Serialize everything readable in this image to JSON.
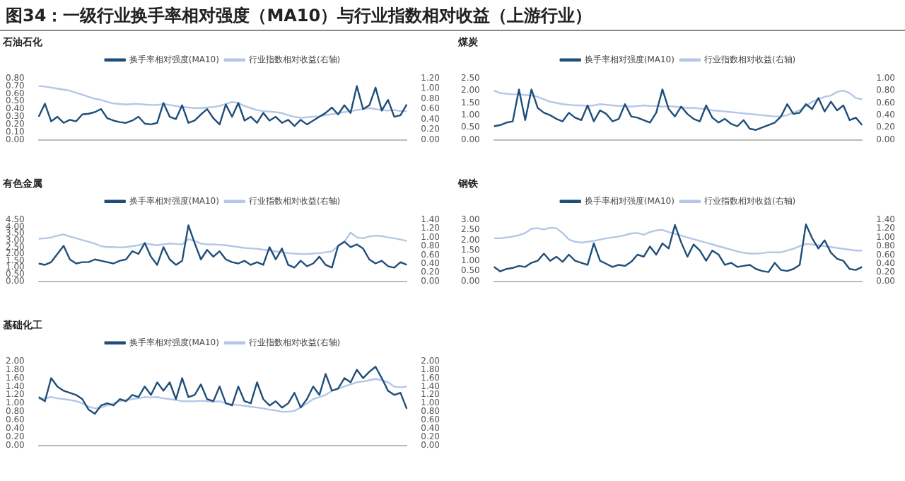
{
  "chart_data": [
    {
      "type": "line",
      "title": "石油石化",
      "categories": [
        null,
        null,
        null,
        null,
        null,
        null,
        null,
        null,
        null,
        null,
        null,
        null,
        null,
        null,
        null,
        null,
        null,
        null,
        null,
        null,
        null,
        null,
        null,
        null,
        null,
        null,
        null,
        null,
        null,
        null,
        null,
        null,
        null,
        null,
        null,
        null,
        null,
        null,
        null,
        null,
        null,
        null,
        null,
        null,
        null,
        null,
        null,
        null,
        null,
        null,
        null,
        null,
        null,
        null,
        null,
        null,
        null,
        null,
        null,
        null
      ],
      "series": [
        {
          "name": "换手率相对强度(MA10)",
          "color": "#1f4e79",
          "values": [
            0.3,
            0.47,
            0.24,
            0.3,
            0.22,
            0.26,
            0.24,
            0.33,
            0.34,
            0.36,
            0.4,
            0.28,
            0.25,
            0.23,
            0.22,
            0.25,
            0.3,
            0.21,
            0.2,
            0.22,
            0.48,
            0.3,
            0.27,
            0.45,
            0.22,
            0.25,
            0.33,
            0.4,
            0.28,
            0.2,
            0.46,
            0.3,
            0.48,
            0.25,
            0.3,
            0.22,
            0.35,
            0.25,
            0.3,
            0.22,
            0.26,
            0.18,
            0.26,
            0.2,
            0.25,
            0.3,
            0.35,
            0.42,
            0.33,
            0.45,
            0.35,
            0.7,
            0.4,
            0.45,
            0.68,
            0.38,
            0.52,
            0.3,
            0.32,
            0.46
          ]
        },
        {
          "name": "行业指数相对收益(右轴)",
          "color": "#b4c7e7",
          "axis": "y2",
          "values": [
            1.05,
            1.04,
            1.02,
            1.0,
            0.98,
            0.96,
            0.92,
            0.88,
            0.84,
            0.8,
            0.78,
            0.74,
            0.71,
            0.7,
            0.69,
            0.7,
            0.7,
            0.69,
            0.68,
            0.68,
            0.7,
            0.68,
            0.66,
            0.64,
            0.63,
            0.62,
            0.62,
            0.63,
            0.64,
            0.66,
            0.7,
            0.74,
            0.72,
            0.66,
            0.62,
            0.58,
            0.56,
            0.55,
            0.54,
            0.52,
            0.48,
            0.45,
            0.43,
            0.44,
            0.45,
            0.46,
            0.48,
            0.5,
            0.52,
            0.54,
            0.56,
            0.58,
            0.6,
            0.62,
            0.6,
            0.58,
            0.57,
            0.58,
            0.56,
            0.56
          ]
        }
      ],
      "ylim": [
        0,
        0.8
      ],
      "yticks": [
        {
          "value": 0,
          "label": "0.00"
        },
        {
          "value": 0.1,
          "label": "0.10"
        },
        {
          "value": 0.2,
          "label": "0.20"
        },
        {
          "value": 0.3,
          "label": "0.30"
        },
        {
          "value": 0.4,
          "label": "0.40"
        },
        {
          "value": 0.5,
          "label": "0.50"
        },
        {
          "value": 0.6,
          "label": "0.60"
        },
        {
          "value": 0.7,
          "label": "0.70"
        },
        {
          "value": 0.8,
          "label": "0.80"
        }
      ],
      "y2lim": [
        0,
        1.2
      ],
      "y2ticks": [
        {
          "value": 0,
          "label": "0.00"
        },
        {
          "value": 0.2,
          "label": "0.20"
        },
        {
          "value": 0.4,
          "label": "0.40"
        },
        {
          "value": 0.6,
          "label": "0.60"
        },
        {
          "value": 0.8,
          "label": "0.80"
        },
        {
          "value": 1.0,
          "label": "1.00"
        },
        {
          "value": 1.2,
          "label": "1.20"
        }
      ],
      "annotations": [
        "图34：一级行业换手率相对强度（MA10）与行业指数相对收益（上游行业）"
      ],
      "legend": "top",
      "grid": false,
      "marker": "none"
    },
    {
      "type": "line",
      "title": "煤炭",
      "categories": [
        null,
        null,
        null,
        null,
        null,
        null,
        null,
        null,
        null,
        null,
        null,
        null,
        null,
        null,
        null,
        null,
        null,
        null,
        null,
        null,
        null,
        null,
        null,
        null,
        null,
        null,
        null,
        null,
        null,
        null,
        null,
        null,
        null,
        null,
        null,
        null,
        null,
        null,
        null,
        null,
        null,
        null,
        null,
        null,
        null,
        null,
        null,
        null,
        null,
        null,
        null,
        null,
        null,
        null,
        null,
        null,
        null,
        null,
        null,
        null
      ],
      "series": [
        {
          "name": "换手率相对强度(MA10)",
          "color": "#1f4e79",
          "values": [
            0.55,
            0.6,
            0.7,
            0.75,
            2.05,
            0.8,
            2.05,
            1.3,
            1.1,
            1.0,
            0.85,
            0.75,
            1.1,
            0.9,
            0.8,
            1.4,
            0.75,
            1.2,
            1.05,
            0.75,
            0.85,
            1.45,
            0.95,
            0.9,
            0.8,
            0.7,
            1.1,
            2.05,
            1.25,
            0.95,
            1.35,
            1.05,
            0.85,
            0.75,
            1.4,
            0.9,
            0.7,
            0.85,
            0.65,
            0.55,
            0.8,
            0.45,
            0.4,
            0.5,
            0.6,
            0.7,
            0.95,
            1.45,
            1.05,
            1.1,
            1.45,
            1.25,
            1.7,
            1.15,
            1.55,
            1.2,
            1.4,
            0.8,
            0.9,
            0.6
          ]
        },
        {
          "name": "行业指数相对收益(右轴)",
          "color": "#b4c7e7",
          "axis": "y2",
          "values": [
            0.8,
            0.76,
            0.75,
            0.74,
            0.74,
            0.73,
            0.72,
            0.7,
            0.66,
            0.62,
            0.6,
            0.58,
            0.57,
            0.56,
            0.56,
            0.55,
            0.56,
            0.58,
            0.57,
            0.56,
            0.55,
            0.55,
            0.54,
            0.55,
            0.56,
            0.55,
            0.55,
            0.54,
            0.55,
            0.54,
            0.53,
            0.52,
            0.52,
            0.51,
            0.5,
            0.48,
            0.47,
            0.46,
            0.45,
            0.44,
            0.43,
            0.42,
            0.41,
            0.4,
            0.39,
            0.38,
            0.38,
            0.4,
            0.44,
            0.48,
            0.55,
            0.62,
            0.66,
            0.7,
            0.72,
            0.78,
            0.8,
            0.76,
            0.68,
            0.66
          ]
        }
      ],
      "ylim": [
        0,
        2.5
      ],
      "yticks": [
        {
          "value": 0,
          "label": "0.00"
        },
        {
          "value": 0.5,
          "label": "0.50"
        },
        {
          "value": 1.0,
          "label": "1.00"
        },
        {
          "value": 1.5,
          "label": "1.50"
        },
        {
          "value": 2.0,
          "label": "2.00"
        },
        {
          "value": 2.5,
          "label": "2.50"
        }
      ],
      "y2lim": [
        0,
        1.0
      ],
      "y2ticks": [
        {
          "value": 0,
          "label": "0.00"
        },
        {
          "value": 0.2,
          "label": "0.20"
        },
        {
          "value": 0.4,
          "label": "0.40"
        },
        {
          "value": 0.6,
          "label": "0.60"
        },
        {
          "value": 0.8,
          "label": "0.80"
        },
        {
          "value": 1.0,
          "label": "1.00"
        }
      ],
      "legend": "top",
      "grid": false,
      "marker": "none"
    },
    {
      "type": "line",
      "title": "有色金属",
      "categories": [
        null,
        null,
        null,
        null,
        null,
        null,
        null,
        null,
        null,
        null,
        null,
        null,
        null,
        null,
        null,
        null,
        null,
        null,
        null,
        null,
        null,
        null,
        null,
        null,
        null,
        null,
        null,
        null,
        null,
        null,
        null,
        null,
        null,
        null,
        null,
        null,
        null,
        null,
        null,
        null,
        null,
        null,
        null,
        null,
        null,
        null,
        null,
        null,
        null,
        null,
        null,
        null,
        null,
        null,
        null,
        null,
        null,
        null,
        null,
        null
      ],
      "series": [
        {
          "name": "换手率相对强度(MA10)",
          "color": "#1f4e79",
          "values": [
            1.3,
            1.2,
            1.4,
            2.0,
            2.6,
            1.6,
            1.3,
            1.4,
            1.4,
            1.6,
            1.5,
            1.4,
            1.3,
            1.5,
            1.6,
            2.2,
            2.0,
            2.8,
            1.8,
            1.2,
            2.5,
            1.6,
            1.2,
            1.5,
            4.1,
            2.8,
            1.6,
            2.3,
            1.8,
            2.2,
            1.6,
            1.4,
            1.3,
            1.5,
            1.2,
            1.4,
            1.2,
            2.5,
            1.6,
            2.4,
            1.2,
            1.0,
            1.5,
            1.1,
            1.3,
            1.8,
            1.2,
            1.0,
            2.6,
            2.9,
            2.5,
            2.7,
            2.4,
            1.6,
            1.3,
            1.5,
            1.1,
            1.0,
            1.4,
            1.2
          ]
        },
        {
          "name": "行业指数相对收益(右轴)",
          "color": "#b4c7e7",
          "axis": "y2",
          "values": [
            0.97,
            0.98,
            1.0,
            1.04,
            1.07,
            1.02,
            0.98,
            0.94,
            0.9,
            0.86,
            0.8,
            0.78,
            0.78,
            0.77,
            0.78,
            0.8,
            0.82,
            0.86,
            0.84,
            0.82,
            0.84,
            0.86,
            0.85,
            0.84,
            0.96,
            0.92,
            0.86,
            0.84,
            0.84,
            0.83,
            0.82,
            0.8,
            0.78,
            0.76,
            0.75,
            0.74,
            0.72,
            0.7,
            0.68,
            0.66,
            0.64,
            0.63,
            0.62,
            0.62,
            0.63,
            0.64,
            0.66,
            0.68,
            0.8,
            0.9,
            1.11,
            1.0,
            0.98,
            1.02,
            1.04,
            1.03,
            1.0,
            0.98,
            0.95,
            0.92
          ]
        }
      ],
      "ylim": [
        0,
        4.5
      ],
      "yticks": [
        {
          "value": 0,
          "label": "0.00"
        },
        {
          "value": 0.5,
          "label": "0.50"
        },
        {
          "value": 1.0,
          "label": "1.00"
        },
        {
          "value": 1.5,
          "label": "1.50"
        },
        {
          "value": 2.0,
          "label": "2.00"
        },
        {
          "value": 2.5,
          "label": "2.50"
        },
        {
          "value": 3.0,
          "label": "3.00"
        },
        {
          "value": 3.5,
          "label": "3.50"
        },
        {
          "value": 4.0,
          "label": "4.00"
        },
        {
          "value": 4.5,
          "label": "4.50"
        }
      ],
      "y2lim": [
        0,
        1.4
      ],
      "y2ticks": [
        {
          "value": 0,
          "label": "0.00"
        },
        {
          "value": 0.2,
          "label": "0.20"
        },
        {
          "value": 0.4,
          "label": "0.40"
        },
        {
          "value": 0.6,
          "label": "0.60"
        },
        {
          "value": 0.8,
          "label": "0.80"
        },
        {
          "value": 1.0,
          "label": "1.00"
        },
        {
          "value": 1.2,
          "label": "1.20"
        },
        {
          "value": 1.4,
          "label": "1.40"
        }
      ],
      "legend": "top",
      "grid": false,
      "marker": "none"
    },
    {
      "type": "line",
      "title": "钢铁",
      "categories": [
        null,
        null,
        null,
        null,
        null,
        null,
        null,
        null,
        null,
        null,
        null,
        null,
        null,
        null,
        null,
        null,
        null,
        null,
        null,
        null,
        null,
        null,
        null,
        null,
        null,
        null,
        null,
        null,
        null,
        null,
        null,
        null,
        null,
        null,
        null,
        null,
        null,
        null,
        null,
        null,
        null,
        null,
        null,
        null,
        null,
        null,
        null,
        null,
        null,
        null,
        null,
        null,
        null,
        null,
        null,
        null,
        null,
        null,
        null,
        null
      ],
      "series": [
        {
          "name": "换手率相对强度(MA10)",
          "color": "#1f4e79",
          "values": [
            0.7,
            0.48,
            0.6,
            0.65,
            0.75,
            0.7,
            0.9,
            1.0,
            1.35,
            1.0,
            1.2,
            0.95,
            1.3,
            1.0,
            0.9,
            0.8,
            1.85,
            1.0,
            0.85,
            0.7,
            0.8,
            0.75,
            0.95,
            1.3,
            1.2,
            1.7,
            1.3,
            1.85,
            1.6,
            2.75,
            1.9,
            1.2,
            1.8,
            1.5,
            1.0,
            1.5,
            1.3,
            0.8,
            0.9,
            0.7,
            0.75,
            0.8,
            0.6,
            0.5,
            0.45,
            0.9,
            0.55,
            0.5,
            0.6,
            0.8,
            2.78,
            2.1,
            1.6,
            2.0,
            1.4,
            1.1,
            1.0,
            0.6,
            0.55,
            0.7
          ]
        },
        {
          "name": "行业指数相对收益(右轴)",
          "color": "#b4c7e7",
          "axis": "y2",
          "values": [
            0.98,
            0.98,
            1.0,
            1.02,
            1.05,
            1.1,
            1.2,
            1.21,
            1.18,
            1.22,
            1.21,
            1.1,
            0.95,
            0.9,
            0.88,
            0.9,
            0.92,
            0.95,
            0.98,
            1.0,
            1.02,
            1.05,
            1.09,
            1.1,
            1.06,
            1.12,
            1.16,
            1.17,
            1.12,
            1.08,
            1.04,
            1.0,
            0.96,
            0.92,
            0.88,
            0.84,
            0.8,
            0.76,
            0.72,
            0.68,
            0.65,
            0.63,
            0.63,
            0.64,
            0.66,
            0.66,
            0.66,
            0.7,
            0.74,
            0.8,
            0.85,
            0.84,
            0.82,
            0.8,
            0.78,
            0.76,
            0.74,
            0.72,
            0.7,
            0.7
          ]
        }
      ],
      "ylim": [
        0,
        3.0
      ],
      "yticks": [
        {
          "value": 0,
          "label": "0.00"
        },
        {
          "value": 0.5,
          "label": "0.50"
        },
        {
          "value": 1.0,
          "label": "1.00"
        },
        {
          "value": 1.5,
          "label": "1.50"
        },
        {
          "value": 2.0,
          "label": "2.00"
        },
        {
          "value": 2.5,
          "label": "2.50"
        },
        {
          "value": 3.0,
          "label": "3.00"
        }
      ],
      "y2lim": [
        0,
        1.4
      ],
      "y2ticks": [
        {
          "value": 0,
          "label": "0.00"
        },
        {
          "value": 0.2,
          "label": "0.20"
        },
        {
          "value": 0.4,
          "label": "0.40"
        },
        {
          "value": 0.6,
          "label": "0.60"
        },
        {
          "value": 0.8,
          "label": "0.80"
        },
        {
          "value": 1.0,
          "label": "1.00"
        },
        {
          "value": 1.2,
          "label": "1.20"
        },
        {
          "value": 1.4,
          "label": "1.40"
        }
      ],
      "legend": "top",
      "grid": false,
      "marker": "none"
    },
    {
      "type": "line",
      "title": "基础化工",
      "categories": [
        null,
        null,
        null,
        null,
        null,
        null,
        null,
        null,
        null,
        null,
        null,
        null,
        null,
        null,
        null,
        null,
        null,
        null,
        null,
        null,
        null,
        null,
        null,
        null,
        null,
        null,
        null,
        null,
        null,
        null,
        null,
        null,
        null,
        null,
        null,
        null,
        null,
        null,
        null,
        null,
        null,
        null,
        null,
        null,
        null,
        null,
        null,
        null,
        null,
        null,
        null,
        null,
        null,
        null,
        null,
        null,
        null,
        null,
        null,
        null
      ],
      "series": [
        {
          "name": "换手率相对强度(MA10)",
          "color": "#1f4e79",
          "values": [
            1.15,
            1.05,
            1.6,
            1.4,
            1.3,
            1.25,
            1.2,
            1.1,
            0.85,
            0.75,
            0.95,
            1.0,
            0.95,
            1.1,
            1.05,
            1.2,
            1.15,
            1.4,
            1.2,
            1.5,
            1.3,
            1.5,
            1.1,
            1.6,
            1.15,
            1.2,
            1.45,
            1.1,
            1.05,
            1.4,
            1.0,
            0.95,
            1.4,
            1.05,
            1.0,
            1.5,
            1.1,
            0.95,
            1.05,
            0.9,
            1.0,
            1.25,
            0.9,
            1.1,
            1.4,
            1.2,
            1.7,
            1.3,
            1.35,
            1.6,
            1.5,
            1.8,
            1.6,
            1.75,
            1.87,
            1.6,
            1.3,
            1.2,
            1.25,
            0.87
          ]
        },
        {
          "name": "行业指数相对收益(右轴)",
          "color": "#b4c7e7",
          "axis": "y2",
          "values": [
            1.1,
            1.12,
            1.15,
            1.12,
            1.1,
            1.08,
            1.05,
            1.0,
            0.92,
            0.88,
            0.9,
            0.95,
            1.0,
            1.05,
            1.08,
            1.1,
            1.12,
            1.15,
            1.14,
            1.15,
            1.12,
            1.1,
            1.08,
            1.05,
            1.05,
            1.05,
            1.06,
            1.05,
            1.04,
            1.05,
            1.0,
            0.98,
            0.96,
            0.94,
            0.92,
            0.9,
            0.88,
            0.85,
            0.83,
            0.8,
            0.8,
            0.82,
            0.9,
            1.0,
            1.1,
            1.15,
            1.2,
            1.3,
            1.35,
            1.4,
            1.45,
            1.5,
            1.52,
            1.55,
            1.58,
            1.55,
            1.5,
            1.4,
            1.38,
            1.4
          ]
        }
      ],
      "ylim": [
        0,
        2.0
      ],
      "yticks": [
        {
          "value": 0,
          "label": "0.00"
        },
        {
          "value": 0.2,
          "label": "0.20"
        },
        {
          "value": 0.4,
          "label": "0.40"
        },
        {
          "value": 0.6,
          "label": "0.60"
        },
        {
          "value": 0.8,
          "label": "0.80"
        },
        {
          "value": 1.0,
          "label": "1.00"
        },
        {
          "value": 1.2,
          "label": "1.20"
        },
        {
          "value": 1.4,
          "label": "1.40"
        },
        {
          "value": 1.6,
          "label": "1.60"
        },
        {
          "value": 1.8,
          "label": "1.80"
        },
        {
          "value": 2.0,
          "label": "2.00"
        }
      ],
      "y2lim": [
        0,
        2.0
      ],
      "y2ticks": [
        {
          "value": 0,
          "label": "0.00"
        },
        {
          "value": 0.2,
          "label": "0.20"
        },
        {
          "value": 0.4,
          "label": "0.40"
        },
        {
          "value": 0.6,
          "label": "0.60"
        },
        {
          "value": 0.8,
          "label": "0.80"
        },
        {
          "value": 1.0,
          "label": "1.00"
        },
        {
          "value": 1.2,
          "label": "1.20"
        },
        {
          "value": 1.4,
          "label": "1.40"
        },
        {
          "value": 1.6,
          "label": "1.60"
        },
        {
          "value": 1.8,
          "label": "1.80"
        },
        {
          "value": 2.0,
          "label": "2.00"
        }
      ],
      "legend": "top",
      "grid": false,
      "marker": "none"
    }
  ]
}
